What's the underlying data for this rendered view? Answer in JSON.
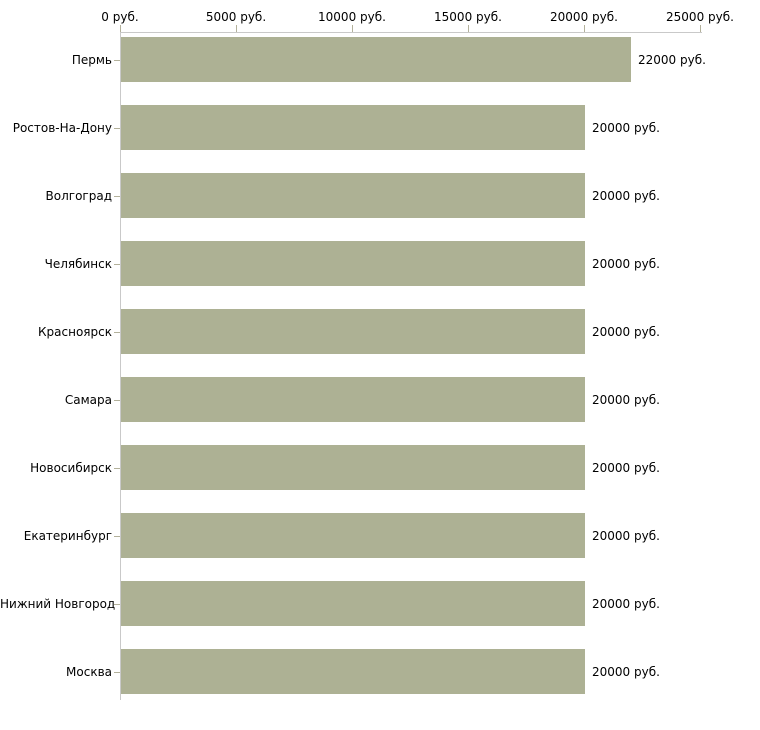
{
  "chart_data": {
    "type": "bar",
    "orientation": "horizontal",
    "title": "",
    "categories": [
      "Пермь",
      "Ростов-На-Дону",
      "Волгоград",
      "Челябинск",
      "Красноярск",
      "Самара",
      "Новосибирск",
      "Екатеринбург",
      "Нижний Новгород",
      "Москва"
    ],
    "values": [
      22000,
      20000,
      20000,
      20000,
      20000,
      20000,
      20000,
      20000,
      20000,
      20000
    ],
    "bar_labels": [
      "22000 руб.",
      "20000 руб.",
      "20000 руб.",
      "20000 руб.",
      "20000 руб.",
      "20000 руб.",
      "20000 руб.",
      "20000 руб.",
      "20000 руб.",
      "20000 руб."
    ],
    "x_tick_values": [
      0,
      5000,
      10000,
      15000,
      20000,
      25000
    ],
    "x_tick_labels": [
      "0 руб.",
      "5000 руб.",
      "10000 руб.",
      "15000 руб.",
      "20000 руб.",
      "25000 руб."
    ],
    "xlim": [
      0,
      25000
    ],
    "unit": "руб.",
    "grid": false,
    "legend": null,
    "layout_hint": "value labels at right end of each bar; category labels left of axis; tick labels above top axis",
    "colors": {
      "bar": "#adb194",
      "axis_line": "#c9c9c9",
      "tick": "#b3b19b",
      "text": "#000000",
      "background": "#ffffff"
    }
  }
}
